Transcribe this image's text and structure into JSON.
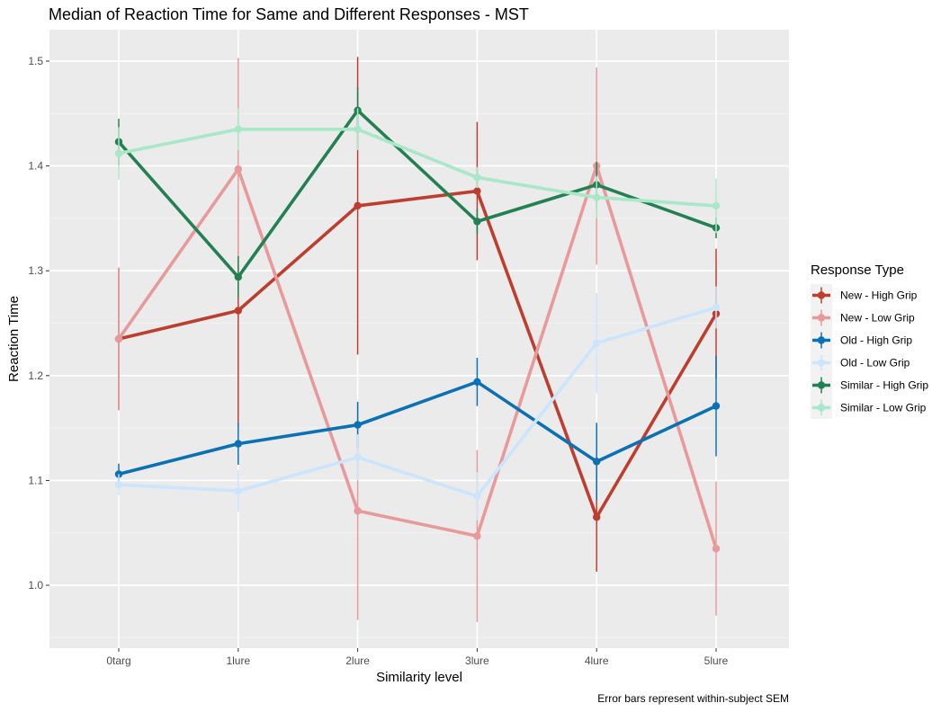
{
  "chart_data": {
    "type": "line",
    "title": "Median of Reaction Time for Same and Different Responses - MST",
    "xlabel": "Similarity level",
    "ylabel": "Reaction Time",
    "caption": "Error bars represent within-subject SEM",
    "categories": [
      "0targ",
      "1lure",
      "2lure",
      "3lure",
      "4lure",
      "5lure"
    ],
    "ylim": [
      0.94,
      1.53
    ],
    "yticks": [
      1.0,
      1.1,
      1.2,
      1.3,
      1.4,
      1.5
    ],
    "ytick_labels": [
      "1.0",
      "1.1",
      "1.2",
      "1.3",
      "1.4",
      "1.5"
    ],
    "grid": true,
    "legend": {
      "title": "Response Type",
      "position": "right"
    },
    "series": [
      {
        "name": "New - High Grip",
        "color": "#bd3e2e",
        "values": [
          1.235,
          1.262,
          1.362,
          1.376,
          1.065,
          1.259
        ],
        "err": [
          0.068,
          0.11,
          0.142,
          0.066,
          0.052,
          0.062
        ]
      },
      {
        "name": "New - Low Grip",
        "color": "#e8999a",
        "values": [
          1.235,
          1.397,
          1.071,
          1.047,
          1.4,
          1.035
        ],
        "err": [
          0.068,
          0.106,
          0.104,
          0.082,
          0.094,
          0.064
        ]
      },
      {
        "name": "Old - High Grip",
        "color": "#0a71b4",
        "values": [
          1.106,
          1.135,
          1.153,
          1.194,
          1.118,
          1.171
        ],
        "err": [
          0.01,
          0.02,
          0.022,
          0.023,
          0.037,
          0.048
        ]
      },
      {
        "name": "Old - Low Grip",
        "color": "#cbe5fd",
        "values": [
          1.096,
          1.09,
          1.122,
          1.085,
          1.231,
          1.265
        ],
        "err": [
          0.01,
          0.02,
          0.022,
          0.023,
          0.048,
          0.02
        ]
      },
      {
        "name": "Similar - High Grip",
        "color": "#238052",
        "values": [
          1.423,
          1.294,
          1.453,
          1.347,
          1.382,
          1.341
        ],
        "err": [
          0.022,
          0.02,
          0.022,
          0.012,
          0.022,
          0.01
        ]
      },
      {
        "name": "Similar - Low Grip",
        "color": "#a8e8c8",
        "values": [
          1.412,
          1.435,
          1.435,
          1.389,
          1.37,
          1.362
        ],
        "err": [
          0.025,
          0.02,
          0.02,
          0.01,
          0.02,
          0.026
        ]
      }
    ]
  }
}
